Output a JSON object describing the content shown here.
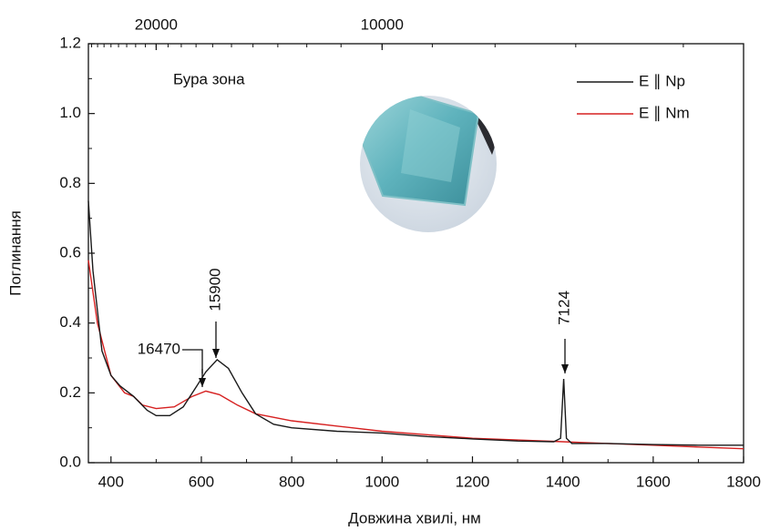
{
  "chart_data": {
    "type": "line",
    "xlabel": "Довжина хвилі, нм",
    "ylabel": "Поглинання",
    "xlim": [
      350,
      1800
    ],
    "ylim": [
      0,
      1.2
    ],
    "xticks": [
      400,
      600,
      800,
      1000,
      1200,
      1400,
      1600,
      1800
    ],
    "yticks": [
      {
        "value": 0,
        "label": "0.0"
      },
      0.2,
      0.4,
      0.6,
      0.8,
      {
        "value": 1,
        "label": "1.0"
      },
      1.2
    ],
    "x2ticks": [
      20000,
      10000
    ],
    "x2scale": "wavenumber",
    "legend": "upper right",
    "annotations": [
      "Бура зона",
      "16470",
      "15900",
      "7124"
    ],
    "series": [
      {
        "name": "E ∥ Np",
        "color": "#1a1a1a",
        "x": [
          350,
          360,
          380,
          400,
          420,
          450,
          480,
          500,
          530,
          560,
          590,
          610,
          635,
          660,
          690,
          720,
          760,
          800,
          900,
          1000,
          1100,
          1200,
          1300,
          1380,
          1395,
          1402,
          1408,
          1420,
          1500,
          1600,
          1700,
          1800
        ],
        "values": [
          0.75,
          0.55,
          0.32,
          0.25,
          0.22,
          0.19,
          0.15,
          0.135,
          0.135,
          0.16,
          0.22,
          0.26,
          0.295,
          0.27,
          0.2,
          0.14,
          0.11,
          0.1,
          0.09,
          0.085,
          0.075,
          0.068,
          0.062,
          0.06,
          0.07,
          0.24,
          0.07,
          0.055,
          0.055,
          0.052,
          0.05,
          0.05
        ]
      },
      {
        "name": "E ∥ Nm",
        "color": "#d62020",
        "x": [
          350,
          370,
          400,
          430,
          450,
          470,
          500,
          540,
          580,
          610,
          640,
          680,
          720,
          800,
          900,
          1000,
          1100,
          1200,
          1300,
          1400,
          1500,
          1600,
          1700,
          1800
        ],
        "values": [
          0.58,
          0.4,
          0.25,
          0.2,
          0.19,
          0.165,
          0.155,
          0.16,
          0.19,
          0.205,
          0.195,
          0.165,
          0.14,
          0.12,
          0.105,
          0.09,
          0.08,
          0.07,
          0.065,
          0.06,
          0.055,
          0.05,
          0.045,
          0.04
        ]
      }
    ]
  }
}
